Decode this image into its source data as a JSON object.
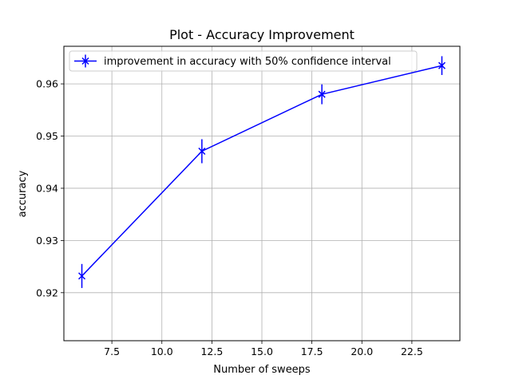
{
  "chart_data": {
    "type": "line",
    "title": "Plot - Accuracy Improvement",
    "xlabel": "Number of sweeps",
    "ylabel": "accuracy",
    "xlim": [
      5.1,
      24.9
    ],
    "ylim": [
      0.9108,
      0.9672
    ],
    "xticks": [
      7.5,
      10.0,
      12.5,
      15.0,
      17.5,
      20.0,
      22.5
    ],
    "xtick_labels": [
      "7.5",
      "10.0",
      "12.5",
      "15.0",
      "17.5",
      "20.0",
      "22.5"
    ],
    "yticks": [
      0.92,
      0.93,
      0.94,
      0.95,
      0.96
    ],
    "ytick_labels": [
      "0.92",
      "0.93",
      "0.94",
      "0.95",
      "0.96"
    ],
    "grid": true,
    "legend_position": "top-left",
    "series": [
      {
        "name": "improvement in accuracy with 50% confidence interval",
        "color": "#0000ff",
        "marker": "x",
        "x": [
          6,
          12,
          18,
          24
        ],
        "y": [
          0.9232,
          0.9471,
          0.958,
          0.9635
        ],
        "yerr": [
          0.0023,
          0.0023,
          0.0019,
          0.0018
        ]
      }
    ]
  }
}
